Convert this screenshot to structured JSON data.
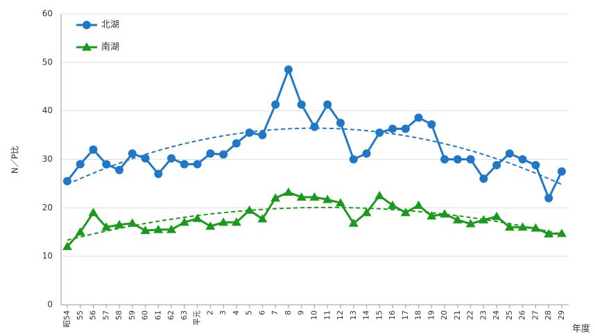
{
  "chart_data": {
    "type": "line",
    "y_label": "N／P比",
    "x_label": "年度",
    "categories": [
      "昭54",
      "55",
      "56",
      "57",
      "58",
      "59",
      "60",
      "61",
      "62",
      "63",
      "平元",
      "2",
      "3",
      "4",
      "5",
      "6",
      "7",
      "8",
      "9",
      "10",
      "11",
      "12",
      "13",
      "14",
      "15",
      "16",
      "17",
      "18",
      "19",
      "20",
      "21",
      "22",
      "23",
      "24",
      "25",
      "26",
      "27",
      "28",
      "29"
    ],
    "series": [
      {
        "name": "北湖",
        "color": "#1f77c8",
        "marker": "circle",
        "trendline": "poly2",
        "values": [
          25.5,
          29,
          32,
          29,
          27.8,
          31.2,
          30.2,
          27,
          30.2,
          29,
          29,
          31.2,
          31,
          33.3,
          35.5,
          35,
          41.3,
          48.5,
          41.3,
          36.7,
          41.3,
          37.5,
          30,
          31.2,
          35.5,
          36.3,
          36.3,
          38.6,
          37.2,
          30,
          30,
          30,
          26,
          28.8,
          31.2,
          30,
          28.8,
          22,
          27.5
        ]
      },
      {
        "name": "南湖",
        "color": "#1a9a1a",
        "marker": "triangle",
        "trendline": "poly2",
        "values": [
          12,
          15,
          19,
          16,
          16.5,
          16.8,
          15.3,
          15.5,
          15.5,
          17,
          17.8,
          16.2,
          17,
          17,
          19.5,
          17.7,
          22,
          23.2,
          22.2,
          22.2,
          21.7,
          21,
          16.8,
          19,
          22.5,
          20.5,
          19,
          20.5,
          18.3,
          18.7,
          17.5,
          16.7,
          17.5,
          18.2,
          16,
          16,
          15.8,
          14.6,
          14.7
        ]
      }
    ],
    "ylim": [
      0,
      60
    ],
    "yticks": [
      0,
      10,
      20,
      30,
      40,
      50,
      60
    ],
    "grid": true,
    "legend": "top-left"
  }
}
